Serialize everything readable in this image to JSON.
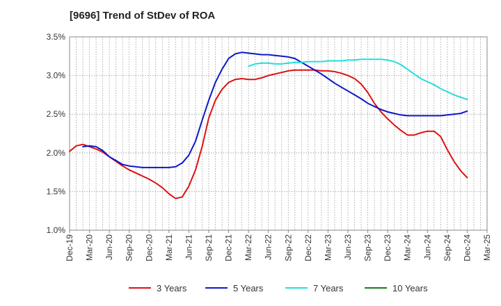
{
  "title": "[9696]  Trend of StDev of ROA",
  "chart_data": {
    "type": "line",
    "title": "[9696]  Trend of StDev of ROA",
    "xlabel": "",
    "ylabel": "",
    "ylim": [
      1.0,
      3.5
    ],
    "y_ticks": [
      "1.0%",
      "1.5%",
      "2.0%",
      "2.5%",
      "3.0%",
      "3.5%"
    ],
    "x_ticks": [
      "Dec-19",
      "Mar-20",
      "Jun-20",
      "Sep-20",
      "Dec-20",
      "Mar-21",
      "Jun-21",
      "Sep-21",
      "Dec-21",
      "Mar-22",
      "Jun-22",
      "Sep-22",
      "Dec-22",
      "Mar-23",
      "Jun-23",
      "Sep-23",
      "Dec-23",
      "Mar-24",
      "Jun-24",
      "Sep-24",
      "Dec-24",
      "Mar-25"
    ],
    "x_start": "2019-12",
    "x_end": "2025-03",
    "grid": true,
    "legend_position": "bottom",
    "series": [
      {
        "name": "3 Years",
        "color": "#dd1111",
        "x": [
          "2019-12",
          "2020-01",
          "2020-02",
          "2020-03",
          "2020-04",
          "2020-05",
          "2020-06",
          "2020-07",
          "2020-08",
          "2020-09",
          "2020-10",
          "2020-11",
          "2020-12",
          "2021-01",
          "2021-02",
          "2021-03",
          "2021-04",
          "2021-05",
          "2021-06",
          "2021-07",
          "2021-08",
          "2021-09",
          "2021-10",
          "2021-11",
          "2021-12",
          "2022-01",
          "2022-02",
          "2022-03",
          "2022-04",
          "2022-05",
          "2022-06",
          "2022-07",
          "2022-08",
          "2022-09",
          "2022-10",
          "2022-11",
          "2022-12",
          "2023-01",
          "2023-02",
          "2023-03",
          "2023-04",
          "2023-05",
          "2023-06",
          "2023-07",
          "2023-08",
          "2023-09",
          "2023-10",
          "2023-11",
          "2023-12",
          "2024-01",
          "2024-02",
          "2024-03",
          "2024-04",
          "2024-05",
          "2024-06",
          "2024-07",
          "2024-08",
          "2024-09",
          "2024-10",
          "2024-11",
          "2024-12"
        ],
        "values": [
          2.02,
          2.09,
          2.11,
          2.08,
          2.05,
          2.01,
          1.95,
          1.89,
          1.83,
          1.78,
          1.74,
          1.7,
          1.66,
          1.61,
          1.55,
          1.47,
          1.41,
          1.43,
          1.57,
          1.78,
          2.08,
          2.45,
          2.68,
          2.82,
          2.91,
          2.95,
          2.96,
          2.95,
          2.95,
          2.97,
          3.0,
          3.02,
          3.04,
          3.06,
          3.07,
          3.07,
          3.07,
          3.07,
          3.06,
          3.06,
          3.05,
          3.03,
          3.0,
          2.96,
          2.89,
          2.78,
          2.64,
          2.53,
          2.44,
          2.36,
          2.29,
          2.23,
          2.23,
          2.26,
          2.28,
          2.28,
          2.21,
          2.04,
          1.89,
          1.77,
          1.68
        ]
      },
      {
        "name": "5 Years",
        "color": "#0c18c8",
        "x": [
          "2020-02",
          "2020-03",
          "2020-04",
          "2020-05",
          "2020-06",
          "2020-07",
          "2020-08",
          "2020-09",
          "2020-10",
          "2020-11",
          "2020-12",
          "2021-01",
          "2021-02",
          "2021-03",
          "2021-04",
          "2021-05",
          "2021-06",
          "2021-07",
          "2021-08",
          "2021-09",
          "2021-10",
          "2021-11",
          "2021-12",
          "2022-01",
          "2022-02",
          "2022-03",
          "2022-04",
          "2022-05",
          "2022-06",
          "2022-07",
          "2022-08",
          "2022-09",
          "2022-10",
          "2022-11",
          "2022-12",
          "2023-01",
          "2023-02",
          "2023-03",
          "2023-04",
          "2023-05",
          "2023-06",
          "2023-07",
          "2023-08",
          "2023-09",
          "2023-10",
          "2023-11",
          "2023-12",
          "2024-01",
          "2024-02",
          "2024-03",
          "2024-04",
          "2024-05",
          "2024-06",
          "2024-07",
          "2024-08",
          "2024-09",
          "2024-10",
          "2024-11",
          "2024-12"
        ],
        "values": [
          2.08,
          2.09,
          2.08,
          2.03,
          1.95,
          1.9,
          1.85,
          1.83,
          1.82,
          1.81,
          1.81,
          1.81,
          1.81,
          1.81,
          1.82,
          1.87,
          1.97,
          2.15,
          2.42,
          2.68,
          2.91,
          3.08,
          3.22,
          3.28,
          3.3,
          3.29,
          3.28,
          3.27,
          3.27,
          3.26,
          3.25,
          3.24,
          3.22,
          3.17,
          3.12,
          3.07,
          3.02,
          2.96,
          2.9,
          2.85,
          2.8,
          2.75,
          2.7,
          2.64,
          2.6,
          2.56,
          2.53,
          2.51,
          2.49,
          2.48,
          2.48,
          2.48,
          2.48,
          2.48,
          2.48,
          2.49,
          2.5,
          2.51,
          2.54
        ]
      },
      {
        "name": "7 Years",
        "color": "#22dddd",
        "x": [
          "2022-03",
          "2022-04",
          "2022-05",
          "2022-06",
          "2022-07",
          "2022-08",
          "2022-09",
          "2022-10",
          "2022-11",
          "2022-12",
          "2023-01",
          "2023-02",
          "2023-03",
          "2023-04",
          "2023-05",
          "2023-06",
          "2023-07",
          "2023-08",
          "2023-09",
          "2023-10",
          "2023-11",
          "2023-12",
          "2024-01",
          "2024-02",
          "2024-03",
          "2024-04",
          "2024-05",
          "2024-06",
          "2024-07",
          "2024-08",
          "2024-09",
          "2024-10",
          "2024-11",
          "2024-12"
        ],
        "values": [
          3.12,
          3.15,
          3.16,
          3.16,
          3.15,
          3.15,
          3.16,
          3.17,
          3.17,
          3.18,
          3.18,
          3.18,
          3.19,
          3.19,
          3.19,
          3.2,
          3.2,
          3.21,
          3.21,
          3.21,
          3.21,
          3.2,
          3.18,
          3.14,
          3.08,
          3.02,
          2.96,
          2.92,
          2.88,
          2.83,
          2.79,
          2.75,
          2.72,
          2.69
        ]
      },
      {
        "name": "10 Years",
        "color": "#1a7a1a",
        "x": [],
        "values": []
      }
    ]
  }
}
